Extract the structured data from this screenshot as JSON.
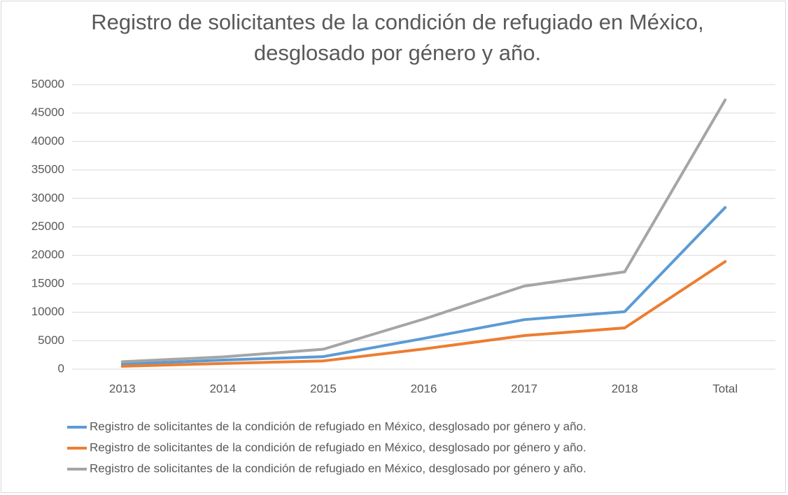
{
  "chart_data": {
    "type": "line",
    "title": "Registro de solicitantes de la condición de refugiado en México, desglosado por género y año.",
    "categories": [
      "2013",
      "2014",
      "2015",
      "2016",
      "2017",
      "2018",
      "Total"
    ],
    "series": [
      {
        "name": "Registro de solicitantes de la condición de refugiado en México, desglosado por género y año.",
        "color": "#5b9bd5",
        "values": [
          860,
          1600,
          2200,
          5400,
          8700,
          10100,
          28400
        ]
      },
      {
        "name": "Registro de solicitantes de la condición de refugiado en México, desglosado por género y año.",
        "color": "#ed7d31",
        "values": [
          500,
          1000,
          1450,
          3550,
          5900,
          7250,
          18900
        ]
      },
      {
        "name": "Registro de solicitantes de la condición de refugiado en México, desglosado por género y año.",
        "color": "#a5a5a5",
        "values": [
          1300,
          2150,
          3500,
          8800,
          14600,
          17100,
          47300
        ]
      }
    ],
    "ylim": [
      0,
      50000
    ],
    "yticks": [
      0,
      5000,
      10000,
      15000,
      20000,
      25000,
      30000,
      35000,
      40000,
      45000,
      50000
    ],
    "grid": true,
    "legend": "bottom"
  }
}
